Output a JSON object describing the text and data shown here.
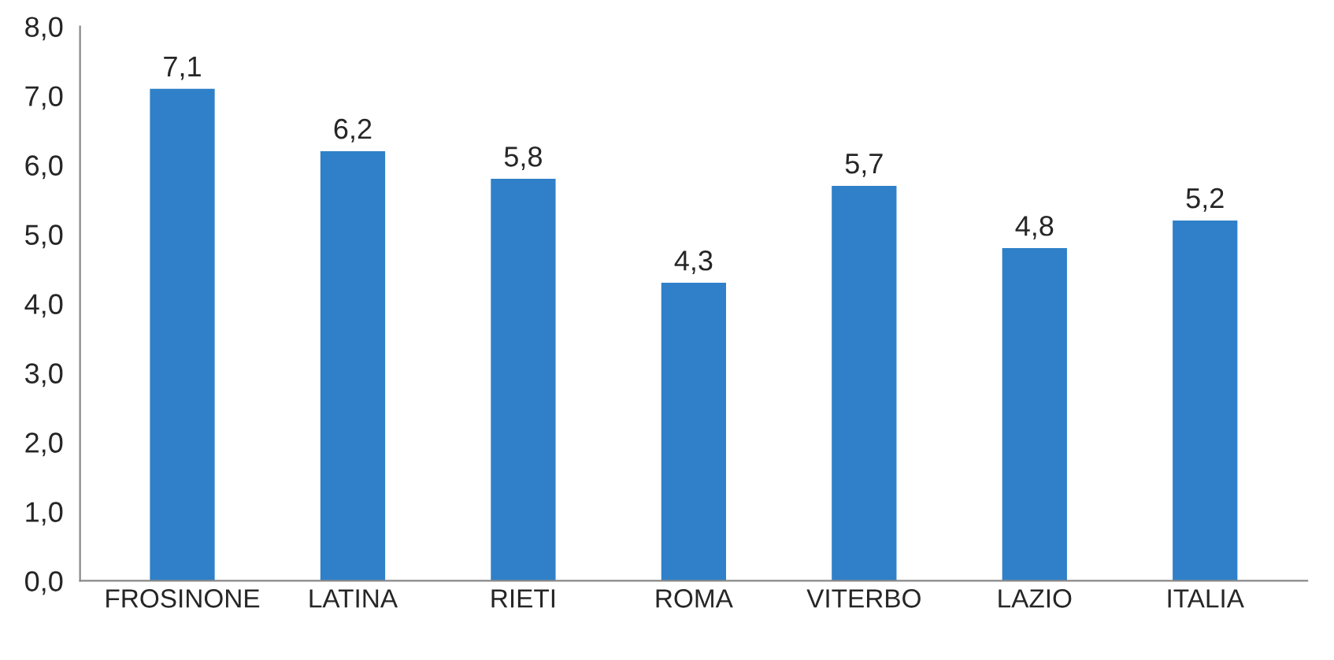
{
  "chart_data": {
    "type": "bar",
    "categories": [
      "FROSINONE",
      "LATINA",
      "RIETI",
      "ROMA",
      "VITERBO",
      "LAZIO",
      "ITALIA"
    ],
    "values": [
      7.1,
      6.2,
      5.8,
      4.3,
      5.7,
      4.8,
      5.2
    ],
    "value_labels": [
      "7,1",
      "6,2",
      "5,8",
      "4,3",
      "5,7",
      "4,8",
      "5,2"
    ],
    "color": "#2f80c8",
    "ylim": [
      0,
      8
    ],
    "yticks": [
      {
        "value": 0,
        "label": "0,0"
      },
      {
        "value": 1,
        "label": "1,0"
      },
      {
        "value": 2,
        "label": "2,0"
      },
      {
        "value": 3,
        "label": "3,0"
      },
      {
        "value": 4,
        "label": "4,0"
      },
      {
        "value": 5,
        "label": "5,0"
      },
      {
        "value": 6,
        "label": "6,0"
      },
      {
        "value": 7,
        "label": "7,0"
      },
      {
        "value": 8,
        "label": "8,0"
      }
    ],
    "grid": false,
    "legend": false
  }
}
